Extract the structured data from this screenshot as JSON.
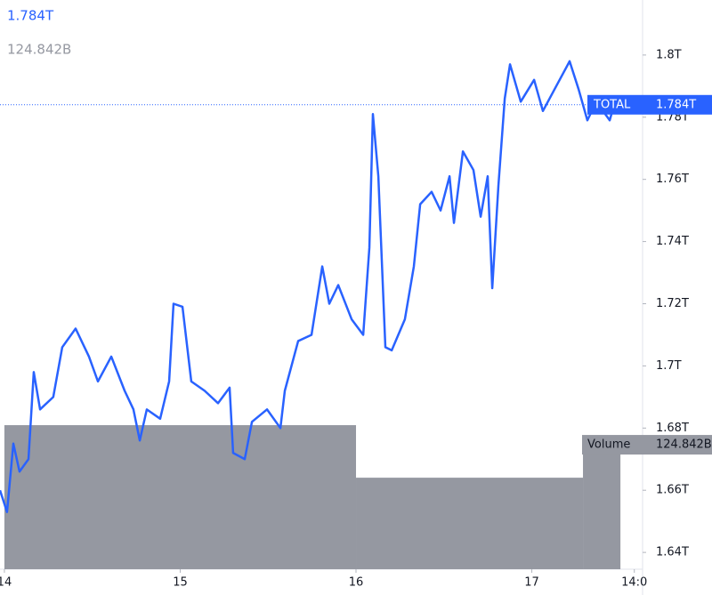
{
  "chart_data": {
    "type": "line",
    "header": {
      "price": "1.784T",
      "volume": "124.842B"
    },
    "xlim": [
      13.975,
      17.63
    ],
    "xticks": [
      {
        "value": 14,
        "label": "14"
      },
      {
        "value": 15,
        "label": "15"
      },
      {
        "value": 16,
        "label": "16"
      },
      {
        "value": 17,
        "label": "17"
      },
      {
        "value": 17.583,
        "label": "14:0"
      }
    ],
    "ylim": [
      1.6346,
      1.8177
    ],
    "yticks": [
      {
        "value": 1.64,
        "label": "1.64T"
      },
      {
        "value": 1.66,
        "label": "1.66T"
      },
      {
        "value": 1.68,
        "label": "1.68T"
      },
      {
        "value": 1.7,
        "label": "1.7T"
      },
      {
        "value": 1.72,
        "label": "1.72T"
      },
      {
        "value": 1.74,
        "label": "1.74T"
      },
      {
        "value": 1.76,
        "label": "1.76T"
      },
      {
        "value": 1.78,
        "label": "1.78T"
      },
      {
        "value": 1.8,
        "label": "1.8T"
      }
    ],
    "y2lim": [
      0,
      571
    ],
    "series": [
      {
        "name": "TOTAL",
        "color": "#2962ff",
        "x": [
          13.975,
          14.015,
          14.051,
          14.086,
          14.137,
          14.167,
          14.203,
          14.278,
          14.329,
          14.405,
          14.481,
          14.532,
          14.608,
          14.684,
          14.734,
          14.77,
          14.81,
          14.886,
          14.937,
          14.962,
          15.013,
          15.063,
          15.139,
          15.215,
          15.281,
          15.301,
          15.367,
          15.408,
          15.494,
          15.57,
          15.595,
          15.671,
          15.747,
          15.808,
          15.848,
          15.899,
          15.975,
          16.041,
          16.076,
          16.096,
          16.127,
          16.167,
          16.203,
          16.278,
          16.329,
          16.365,
          16.43,
          16.481,
          16.532,
          16.557,
          16.608,
          16.668,
          16.709,
          16.749,
          16.775,
          16.81,
          16.846,
          16.876,
          16.937,
          17.013,
          17.063,
          17.139,
          17.215,
          17.266,
          17.316,
          17.367,
          17.443,
          17.468
        ],
        "values": [
          1.66,
          1.653,
          1.675,
          1.666,
          1.67,
          1.698,
          1.686,
          1.69,
          1.706,
          1.712,
          1.703,
          1.695,
          1.703,
          1.692,
          1.686,
          1.676,
          1.686,
          1.683,
          1.695,
          1.72,
          1.719,
          1.695,
          1.692,
          1.688,
          1.693,
          1.672,
          1.67,
          1.682,
          1.686,
          1.68,
          1.692,
          1.708,
          1.71,
          1.732,
          1.72,
          1.726,
          1.715,
          1.71,
          1.738,
          1.781,
          1.761,
          1.706,
          1.705,
          1.715,
          1.732,
          1.752,
          1.756,
          1.75,
          1.761,
          1.746,
          1.769,
          1.763,
          1.748,
          1.761,
          1.725,
          1.758,
          1.786,
          1.797,
          1.785,
          1.792,
          1.782,
          1.79,
          1.798,
          1.789,
          1.779,
          1.785,
          1.779,
          1.784
        ]
      },
      {
        "name": "Volume",
        "color": "#9598a1",
        "axis": "y2",
        "bins": [
          14,
          16,
          17.291,
          17.504
        ],
        "values": [
          144.5,
          91.8,
          124.842
        ]
      }
    ]
  }
}
